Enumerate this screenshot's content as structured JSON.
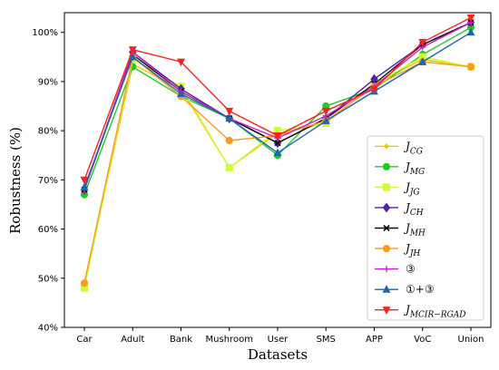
{
  "chart_data": {
    "type": "line",
    "title": "",
    "xlabel": "Datasets",
    "ylabel": "Robustness (%)",
    "categories": [
      "Car",
      "Adult",
      "Bank",
      "Mushroom",
      "User",
      "SMS",
      "APP",
      "VoC",
      "Union"
    ],
    "ylim": [
      40,
      104
    ],
    "yticks": [
      40,
      50,
      60,
      70,
      80,
      90,
      100
    ],
    "ytick_labels": [
      "40%",
      "50%",
      "60%",
      "70%",
      "80%",
      "90%",
      "100%"
    ],
    "grid": false,
    "legend_position": "right",
    "series": [
      {
        "name": "J_CG",
        "label_main": "J",
        "label_sub": "CG",
        "color": "#f0c800",
        "marker": "diamond-small",
        "values": [
          48.5,
          93.5,
          88.5,
          72.5,
          79.5,
          81.5,
          89.5,
          94.5,
          93.0
        ]
      },
      {
        "name": "J_MG",
        "label_main": "J",
        "label_sub": "MG",
        "color": "#22cc22",
        "marker": "circle",
        "values": [
          67.0,
          93.0,
          87.0,
          82.5,
          75.0,
          85.0,
          88.5,
          95.5,
          101.0
        ]
      },
      {
        "name": "J_JG",
        "label_main": "J",
        "label_sub": "JG",
        "color": "#ccff33",
        "marker": "square",
        "values": [
          48.0,
          94.5,
          89.0,
          72.5,
          80.0,
          81.5,
          89.5,
          95.0,
          93.0
        ]
      },
      {
        "name": "J_CH",
        "label_main": "J",
        "label_sub": "CH",
        "color": "#5522aa",
        "marker": "diamond",
        "values": [
          68.0,
          96.0,
          88.5,
          82.5,
          77.5,
          82.5,
          90.5,
          97.5,
          102.0
        ]
      },
      {
        "name": "J_MH",
        "label_main": "J",
        "label_sub": "MH",
        "color": "#111111",
        "marker": "x",
        "values": [
          68.0,
          95.5,
          88.0,
          82.5,
          77.5,
          82.5,
          89.5,
          97.5,
          102.0
        ]
      },
      {
        "name": "J_JH",
        "label_main": "J",
        "label_sub": "JH",
        "color": "#ff9922",
        "marker": "circle",
        "values": [
          49.0,
          95.0,
          87.0,
          78.0,
          79.0,
          82.0,
          89.0,
          94.0,
          93.0
        ]
      },
      {
        "name": "③",
        "label_main": "③",
        "label_sub": "",
        "color": "#cc22cc",
        "marker": "plus",
        "values": [
          68.0,
          96.0,
          88.0,
          82.5,
          78.5,
          83.0,
          89.0,
          97.0,
          102.0
        ]
      },
      {
        "name": "①+③",
        "label_main": "①+③",
        "label_sub": "",
        "color": "#1f66b3",
        "marker": "triangle-up",
        "values": [
          68.5,
          95.0,
          87.5,
          82.5,
          75.5,
          82.0,
          88.0,
          94.0,
          100.0
        ]
      },
      {
        "name": "J_MCIR−RGAD",
        "label_main": "J",
        "label_sub": "MCIR−RGAD",
        "color": "#ff2020",
        "marker": "triangle-down",
        "values": [
          70.0,
          96.5,
          94.0,
          84.0,
          79.0,
          84.0,
          88.5,
          98.0,
          103.0
        ]
      }
    ]
  }
}
